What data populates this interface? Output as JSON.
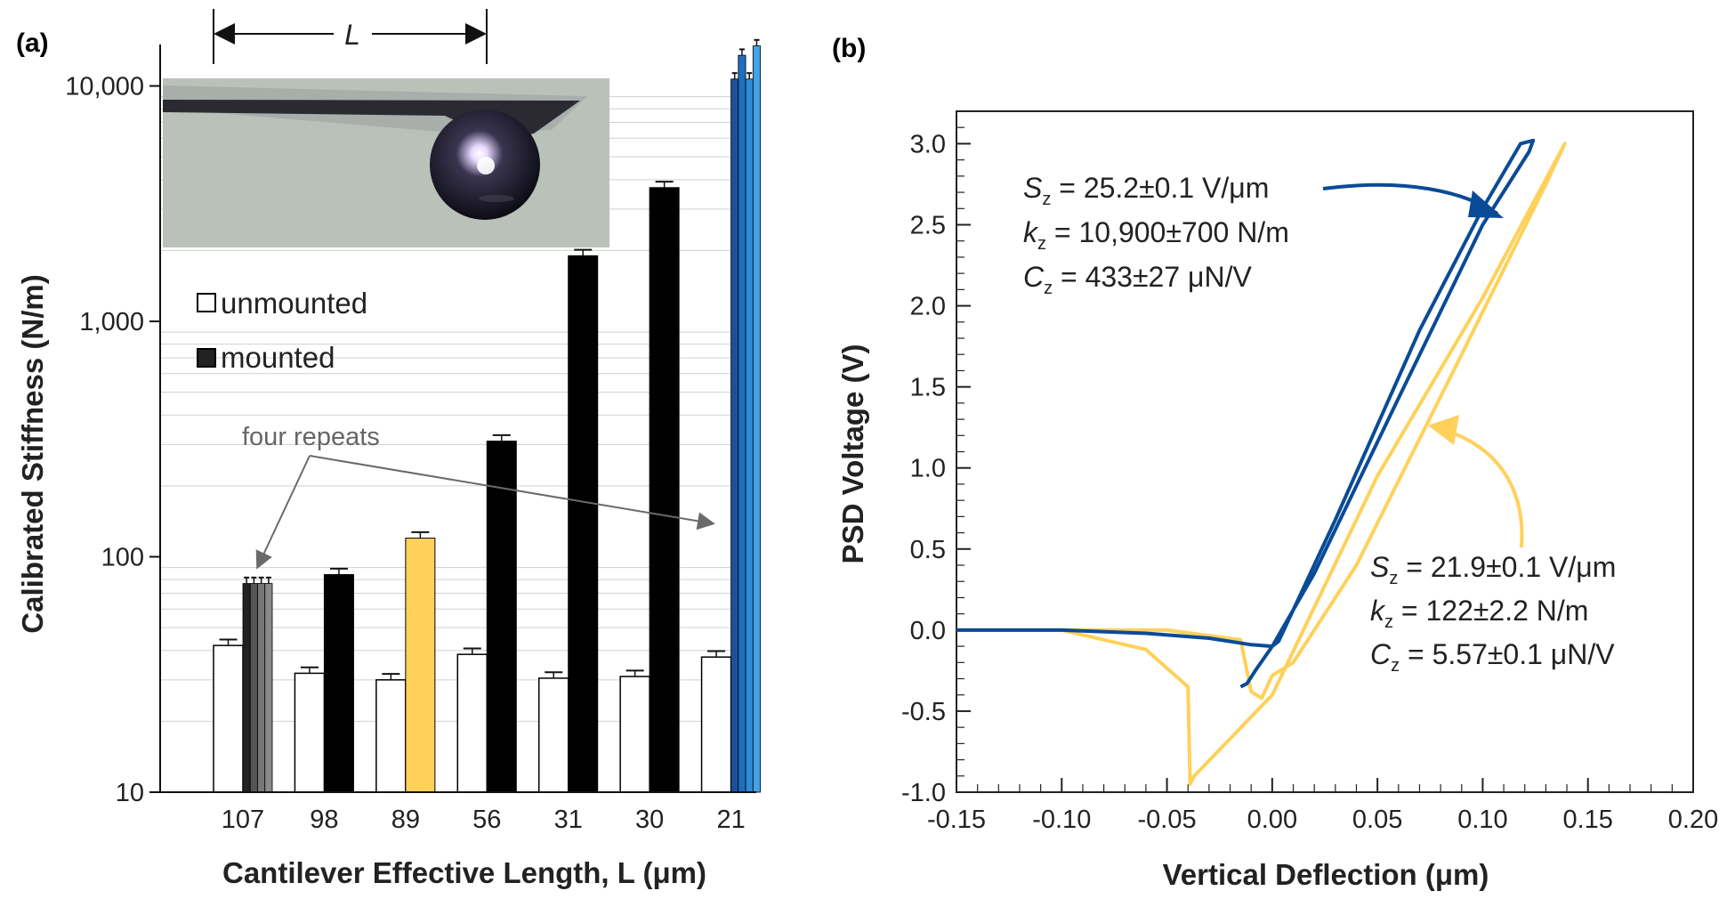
{
  "panel_a_label": "(a)",
  "panel_b_label": "(b)",
  "length_marker": "L",
  "colors": {
    "black": "#000000",
    "yellow": "#ffd15a",
    "blue": "#0a4b97",
    "blue_shades": [
      "#1d4f9a",
      "#1f6fc1",
      "#2f8bd6",
      "#44a3e6"
    ],
    "gray_shades": [
      "#222222",
      "#555555",
      "#777777",
      "#8a8a8a"
    ],
    "annotation_gray": "#6a6a6a"
  },
  "chart_data": [
    {
      "type": "bar",
      "panel": "(a)",
      "xlabel": "Cantilever Effective Length, L (μm)",
      "ylabel": "Calibrated Stiffness (N/m)",
      "yscale": "log",
      "ylim": [
        10,
        15000
      ],
      "yticks": [
        10,
        100,
        1000,
        10000
      ],
      "ytick_labels": [
        "10",
        "100",
        "1,000",
        "10,000"
      ],
      "grid": "horizontal minor lines",
      "categories": [
        "107",
        "98",
        "89",
        "56",
        "31",
        "30",
        "21"
      ],
      "legend": {
        "unmounted": "unmounted",
        "mounted": "mounted"
      },
      "legend_position": "upper-left, below inset image",
      "annotation": "four repeats",
      "series": [
        {
          "name": "unmounted",
          "values": [
            42,
            32,
            30,
            38.5,
            30.5,
            31,
            37.5
          ]
        },
        {
          "name": "mounted",
          "values": [
            [
              77,
              77,
              77,
              77
            ],
            84,
            120,
            310,
            1900,
            3700,
            [
              10700,
              13500,
              10700,
              14800
            ]
          ]
        }
      ],
      "highlight_colors": {
        "89": "yellow",
        "21": "blue_shades",
        "107": "gray_shades"
      }
    },
    {
      "type": "line",
      "panel": "(b)",
      "xlabel": "Vertical Deflection (μm)",
      "ylabel": "PSD Voltage (V)",
      "xlim": [
        -0.15,
        0.2
      ],
      "ylim": [
        -1.0,
        3.2
      ],
      "xticks": [
        "-0.15",
        "-0.10",
        "-0.05",
        "0.00",
        "0.05",
        "0.10",
        "0.15",
        "0.20"
      ],
      "yticks": [
        "-1.0",
        "-0.5",
        "0.0",
        "0.5",
        "1.0",
        "1.5",
        "2.0",
        "2.5",
        "3.0"
      ],
      "series": [
        {
          "color": "blue",
          "x": [
            -0.15,
            -0.1,
            -0.06,
            -0.03,
            -0.01,
            0.0,
            0.003,
            0.03,
            0.07,
            0.1,
            0.118,
            0.124,
            0.122,
            0.1,
            0.06,
            0.02,
            0.0,
            -0.008,
            -0.012,
            -0.015
          ],
          "y": [
            0.0,
            0.0,
            -0.02,
            -0.05,
            -0.09,
            -0.1,
            -0.07,
            0.68,
            1.85,
            2.6,
            3.0,
            3.02,
            2.95,
            2.5,
            1.43,
            0.35,
            -0.1,
            -0.25,
            -0.33,
            -0.35
          ]
        },
        {
          "color": "yellow",
          "x": [
            -0.15,
            -0.1,
            -0.06,
            -0.04,
            -0.039,
            -0.037,
            0.0,
            0.05,
            0.1,
            0.139,
            0.13,
            0.09,
            0.04,
            0.01,
            0.0,
            -0.005,
            -0.01,
            -0.015,
            -0.05,
            -0.1,
            -0.15
          ],
          "y": [
            0.0,
            0.0,
            -0.12,
            -0.35,
            -0.95,
            -0.9,
            -0.4,
            0.95,
            2.05,
            3.0,
            2.75,
            1.7,
            0.4,
            -0.2,
            -0.28,
            -0.42,
            -0.38,
            -0.06,
            0.0,
            0.0,
            0.0
          ]
        }
      ],
      "annotations": [
        {
          "color": "blue",
          "lines": [
            "S_z = 25.2±0.1 V/μm",
            "k_z = 10,900±700  N/m",
            "C_z = 433±27 μN/V"
          ]
        },
        {
          "color": "yellow",
          "lines": [
            "S_z = 21.9±0.1 V/μm",
            "k_z = 122±2.2 N/m",
            "C_z = 5.57±0.1 μN/V"
          ]
        }
      ]
    }
  ]
}
